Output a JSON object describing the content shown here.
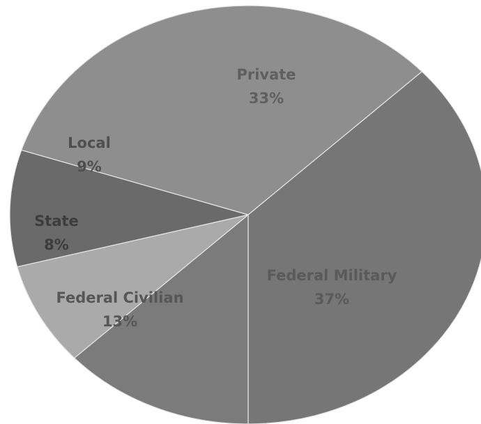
{
  "chart_data": {
    "type": "pie",
    "title": "",
    "slices": [
      {
        "label": "Private",
        "value": 33,
        "value_label": "33%",
        "color": "#8e8e8e",
        "label_color": "#5f5f5f"
      },
      {
        "label": "Federal Military",
        "value": 37,
        "value_label": "37%",
        "color": "#767676",
        "label_color": "#5a5a5a"
      },
      {
        "label": "Federal Civilian",
        "value": 13,
        "value_label": "13%",
        "color": "#7b7b7b",
        "label_color": "#565656"
      },
      {
        "label": "State",
        "value": 8,
        "value_label": "8%",
        "color": "#aaaaaa",
        "label_color": "#3c3c3c"
      },
      {
        "label": "Local",
        "value": 9,
        "value_label": "9%",
        "color": "#6a6a6a",
        "label_color": "#4f4f4f"
      }
    ],
    "slice_border_color": "#e6e6e6",
    "background": "#ffffff"
  }
}
